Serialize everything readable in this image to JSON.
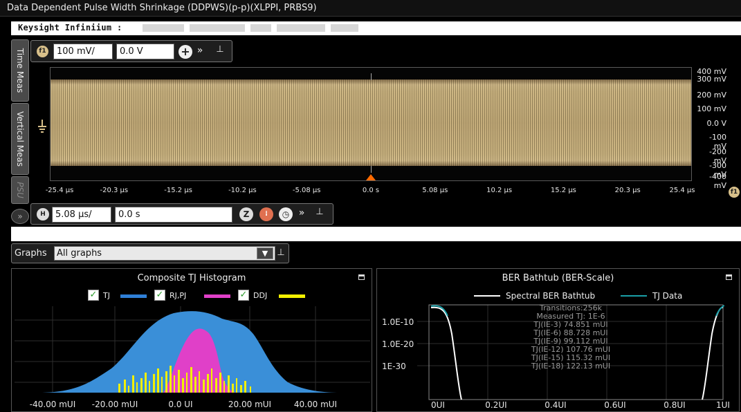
{
  "window": {
    "title": "Data Dependent Pulse Width Shrinkage (DDPWS)(p-p)(XLPPI, PRBS9)",
    "subtitle": "Keysight Infiniium :"
  },
  "side_tabs": [
    "Time Meas",
    "Vertical Meas",
    "PSU"
  ],
  "vertical_toolbar": {
    "channel_badge": "f1",
    "scale": "100 mV/",
    "offset": "0.0 V"
  },
  "horizontal_toolbar": {
    "badge": "H",
    "scale": "5.08 µs/",
    "position": "0.0 s"
  },
  "waveform": {
    "y_labels": [
      "400 mV",
      "300 mV",
      "200 mV",
      "100 mV",
      "0.0 V",
      "-100 mV",
      "-200 mV",
      "-300 mV",
      "-400 mV"
    ],
    "x_labels": [
      "-25.4 µs",
      "-20.3 µs",
      "-15.2 µs",
      "-10.2 µs",
      "-5.08 µs",
      "0.0 s",
      "5.08 µs",
      "10.2 µs",
      "15.2 µs",
      "20.3 µs",
      "25.4 µs"
    ],
    "x_badge": "f1",
    "band_color": "#cdb683",
    "trigger_color": "#ff6a00"
  },
  "graphs": {
    "label": "Graphs",
    "selected": "All graphs"
  },
  "histogram_panel": {
    "title": "Composite TJ Histogram",
    "legend": [
      {
        "label": "TJ",
        "color": "#2f7fd6"
      },
      {
        "label": "RJ,PJ",
        "color": "#e040c8"
      },
      {
        "label": "DDJ",
        "color": "#f2f000"
      }
    ],
    "x_ticks": [
      "-40.00 mUI",
      "-20.00 mUI",
      "0.0 UI",
      "20.00 mUI",
      "40.00 mUI"
    ]
  },
  "bathtub_panel": {
    "title": "BER Bathtub (BER-Scale)",
    "legend": [
      {
        "label": "Spectral BER Bathtub",
        "color": "#ffffff"
      },
      {
        "label": "TJ Data",
        "color": "#1aa0a8"
      }
    ],
    "y_ticks": [
      "1.0E-10",
      "1.0E-20",
      "1E-30"
    ],
    "x_ticks": [
      "0UI",
      "0.2UI",
      "0.4UI",
      "0.6UI",
      "0.8UI",
      "1UI"
    ],
    "annotations": [
      "Transitions:256k",
      "Measured TJ: 1E-6",
      "TJ(IE-3) 74.851 mUI",
      "TJ(IE-6) 88.728 mUI",
      "TJ(IE-9) 99.112 mUI",
      "TJ(IE-12) 107.76 mUI",
      "TJ(IE-15) 115.32 mUI",
      "TJ(IE-18) 122.13 mUI"
    ]
  }
}
